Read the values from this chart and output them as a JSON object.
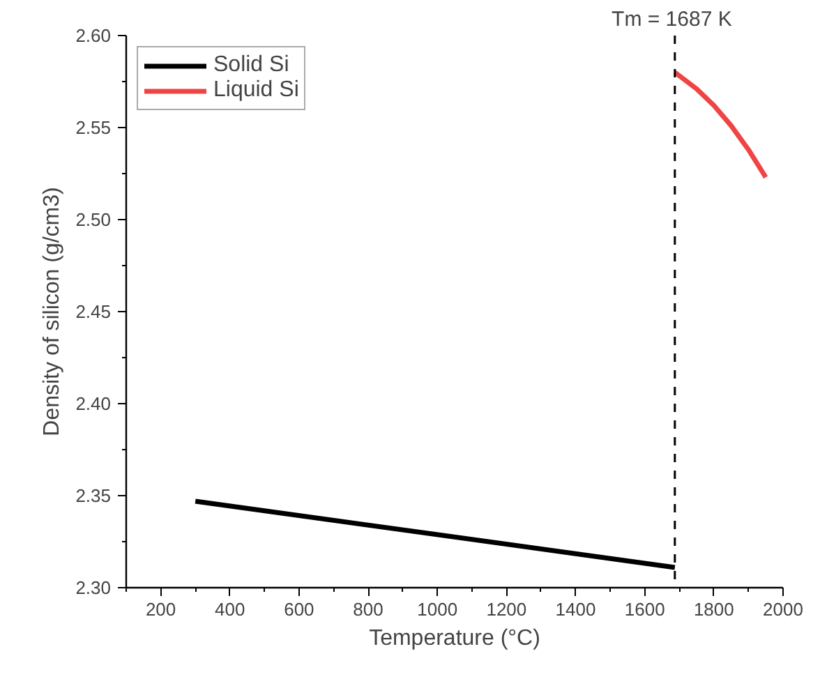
{
  "chart_data": {
    "type": "line",
    "xlabel": "Temperature (°C)",
    "ylabel": "Density of silicon (g/cm3)",
    "xlim": [
      100,
      2000
    ],
    "ylim": [
      2.3,
      2.6
    ],
    "xticks": [
      200,
      400,
      600,
      800,
      1000,
      1200,
      1400,
      1600,
      1800,
      2000
    ],
    "yticks": [
      {
        "value": 2.3,
        "label": "2.30"
      },
      {
        "value": 2.35,
        "label": "2.35"
      },
      {
        "value": 2.4,
        "label": "2.40"
      },
      {
        "value": 2.45,
        "label": "2.45"
      },
      {
        "value": 2.5,
        "label": "2.50"
      },
      {
        "value": 2.55,
        "label": "2.55"
      },
      {
        "value": 2.6,
        "label": "2.60"
      }
    ],
    "series": [
      {
        "name": "Solid Si",
        "color": "#000000",
        "x": [
          300,
          1687
        ],
        "values": [
          2.347,
          2.311
        ]
      },
      {
        "name": "Liquid Si",
        "color": "#ef4444",
        "x": [
          1687,
          1750,
          1800,
          1850,
          1900,
          1950
        ],
        "values": [
          2.58,
          2.571,
          2.562,
          2.551,
          2.538,
          2.523
        ]
      }
    ],
    "ref_lines": [
      {
        "axis": "x",
        "value": 1687,
        "label": "Tm = 1687 K",
        "color": "#000000",
        "line_style": "dashed"
      }
    ],
    "legend": "top left",
    "grid": false,
    "line_style": "solid"
  }
}
